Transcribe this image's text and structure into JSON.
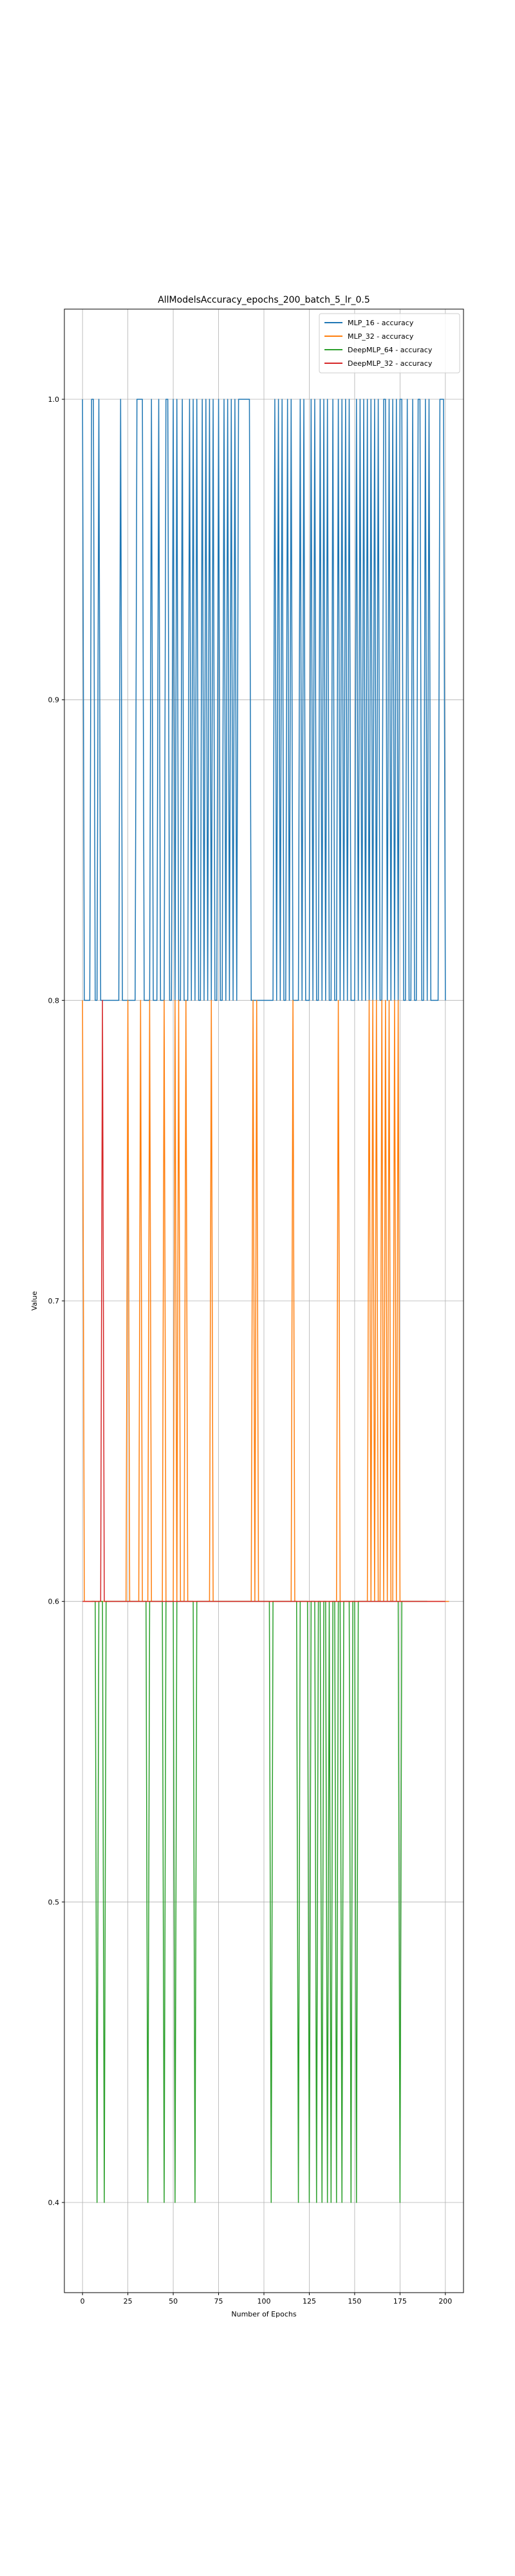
{
  "chart_data": {
    "type": "line",
    "title": "AllModelsAccuracy_epochs_200_batch_5_lr_0.5",
    "xlabel": "Number of Epochs",
    "ylabel": "Value",
    "xlim": [
      -10,
      210
    ],
    "ylim": [
      0.37,
      1.03
    ],
    "x_ticks": [
      0,
      25,
      50,
      75,
      100,
      125,
      150,
      175,
      200
    ],
    "y_ticks": [
      0.4,
      0.5,
      0.6,
      0.7,
      0.8,
      0.9,
      1.0
    ],
    "x_tick_labels": [
      "0",
      "25",
      "50",
      "75",
      "100",
      "125",
      "150",
      "175",
      "200"
    ],
    "y_tick_labels": [
      "0.4",
      "0.5",
      "0.6",
      "0.7",
      "0.8",
      "0.9",
      "1.0"
    ],
    "grid": true,
    "legend_position": "top-right",
    "series": [
      {
        "name": "MLP_16 - accuracy",
        "color": "#1f77b4",
        "x_start": 0,
        "values": [
          1,
          0.8,
          0.8,
          0.8,
          0.8,
          1,
          1,
          0.8,
          0.8,
          1,
          0.8,
          0.8,
          0.8,
          0.8,
          0.8,
          0.8,
          0.8,
          0.8,
          0.8,
          0.8,
          0.8,
          1,
          0.8,
          0.8,
          0.8,
          0.8,
          0.8,
          0.8,
          0.8,
          0.8,
          1,
          1,
          1,
          1,
          0.8,
          0.8,
          0.8,
          0.8,
          1,
          0.8,
          0.8,
          0.8,
          1,
          0.8,
          0.8,
          0.8,
          1,
          1,
          0.8,
          0.8,
          1,
          0.8,
          1,
          0.8,
          0.8,
          1,
          0.8,
          0.8,
          0.8,
          1,
          0.8,
          1,
          0.8,
          1,
          0.8,
          0.8,
          1,
          0.8,
          1,
          0.8,
          1,
          0.8,
          1,
          0.8,
          0.8,
          1,
          0.8,
          0.8,
          1,
          0.8,
          1,
          0.8,
          1,
          0.8,
          1,
          0.8,
          1,
          1,
          1,
          1,
          1,
          1,
          1,
          0.8,
          0.8,
          0.8,
          0.8,
          0.8,
          0.8,
          0.8,
          0.8,
          0.8,
          0.8,
          0.8,
          0.8,
          0.8,
          1,
          0.8,
          1,
          0.8,
          1,
          0.8,
          0.8,
          1,
          0.8,
          1,
          0.8,
          0.8,
          0.8,
          0.8,
          1,
          0.8,
          1,
          0.8,
          0.8,
          0.8,
          1,
          0.8,
          1,
          0.8,
          0.8,
          1,
          0.8,
          1,
          0.8,
          1,
          0.8,
          0.8,
          1,
          0.8,
          0.8,
          1,
          0.8,
          1,
          0.8,
          1,
          0.8,
          1,
          0.8,
          0.8,
          0.8,
          1,
          0.8,
          1,
          0.8,
          1,
          0.8,
          1,
          0.8,
          1,
          0.8,
          1,
          0.8,
          1,
          0.8,
          0.8,
          1,
          1,
          0.8,
          1,
          0.8,
          1,
          0.8,
          1,
          0.8,
          1,
          1,
          0.8,
          0.8,
          1,
          0.8,
          0.8,
          1,
          0.8,
          0.8,
          1,
          1,
          0.8,
          0.8,
          1,
          0.8,
          1,
          0.8,
          0.8,
          0.8,
          0.8,
          0.8,
          1,
          1,
          1,
          0.8
        ]
      },
      {
        "name": "MLP_32 - accuracy",
        "color": "#ff7f0e",
        "x_start": 0,
        "values": [
          0.8,
          0.6,
          0.6,
          0.6,
          0.6,
          0.6,
          0.6,
          0.6,
          0.6,
          0.6,
          0.6,
          0.6,
          0.6,
          0.6,
          0.6,
          0.6,
          0.6,
          0.6,
          0.6,
          0.6,
          0.6,
          0.6,
          0.6,
          0.6,
          0.6,
          0.8,
          0.6,
          0.6,
          0.6,
          0.6,
          0.6,
          0.6,
          0.8,
          0.6,
          0.6,
          0.6,
          0.6,
          0.8,
          0.6,
          0.6,
          0.6,
          0.6,
          0.6,
          0.6,
          0.6,
          0.8,
          0.6,
          0.6,
          0.6,
          0.6,
          0.6,
          0.8,
          0.6,
          0.8,
          0.6,
          0.6,
          0.6,
          0.8,
          0.6,
          0.6,
          0.6,
          0.6,
          0.6,
          0.6,
          0.6,
          0.6,
          0.6,
          0.6,
          0.6,
          0.6,
          0.6,
          0.8,
          0.6,
          0.6,
          0.6,
          0.6,
          0.6,
          0.6,
          0.6,
          0.6,
          0.6,
          0.6,
          0.6,
          0.6,
          0.6,
          0.6,
          0.6,
          0.6,
          0.6,
          0.6,
          0.6,
          0.6,
          0.6,
          0.6,
          0.8,
          0.6,
          0.8,
          0.6,
          0.6,
          0.6,
          0.6,
          0.6,
          0.6,
          0.6,
          0.6,
          0.6,
          0.6,
          0.6,
          0.6,
          0.6,
          0.6,
          0.6,
          0.6,
          0.6,
          0.6,
          0.6,
          0.8,
          0.6,
          0.6,
          0.6,
          0.6,
          0.6,
          0.6,
          0.6,
          0.6,
          0.6,
          0.6,
          0.6,
          0.6,
          0.6,
          0.6,
          0.6,
          0.6,
          0.6,
          0.6,
          0.6,
          0.6,
          0.6,
          0.6,
          0.6,
          0.6,
          0.8,
          0.6,
          0.6,
          0.6,
          0.6,
          0.6,
          0.6,
          0.6,
          0.6,
          0.6,
          0.6,
          0.6,
          0.6,
          0.6,
          0.6,
          0.6,
          0.6,
          0.8,
          0.6,
          0.8,
          0.6,
          0.8,
          0.6,
          0.6,
          0.8,
          0.6,
          0.8,
          0.6,
          0.8,
          0.6,
          0.6,
          0.8,
          0.6,
          0.8,
          0.6,
          0.6,
          0.6,
          0.6,
          0.6,
          0.6,
          0.6,
          0.6,
          0.6,
          0.6,
          0.6,
          0.6,
          0.6,
          0.6,
          0.6,
          0.6,
          0.6,
          0.6,
          0.6,
          0.6,
          0.6,
          0.6,
          0.6,
          0.6,
          0.6,
          0.6,
          0.6,
          0.6
        ]
      },
      {
        "name": "DeepMLP_64 - accuracy",
        "color": "#2ca02c",
        "x_start": 5,
        "values": [
          0.6,
          0.6,
          0.6,
          0.4,
          0.6,
          0.6,
          0.6,
          0.4,
          0.6,
          0.6,
          0.6,
          0.6,
          0.6,
          0.6,
          0.6,
          0.6,
          0.6,
          0.6,
          0.6,
          0.6,
          0.6,
          0.6,
          0.6,
          0.6,
          0.6,
          0.6,
          0.6,
          0.6,
          0.6,
          0.6,
          0.6,
          0.4,
          0.6,
          0.6,
          0.6,
          0.6,
          0.6,
          0.6,
          0.6,
          0.6,
          0.4,
          0.6,
          0.6,
          0.6,
          0.6,
          0.6,
          0.4,
          0.6,
          0.6,
          0.6,
          0.6,
          0.6,
          0.6,
          0.6,
          0.6,
          0.6,
          0.6,
          0.4,
          0.6,
          0.6,
          0.6,
          0.6,
          0.6,
          0.6,
          0.6,
          0.6,
          0.6,
          0.6,
          0.6,
          0.6,
          0.6,
          0.6,
          0.6,
          0.6,
          0.6,
          0.6,
          0.6,
          0.6,
          0.6,
          0.6,
          0.6,
          0.6,
          0.6,
          0.6,
          0.6,
          0.6,
          0.6,
          0.6,
          0.6,
          0.6,
          0.6,
          0.6,
          0.6,
          0.6,
          0.6,
          0.6,
          0.6,
          0.6,
          0.6,
          0.4,
          0.6,
          0.6,
          0.6,
          0.6,
          0.6,
          0.6,
          0.6,
          0.6,
          0.6,
          0.6,
          0.6,
          0.6,
          0.6,
          0.6,
          0.4,
          0.6,
          0.6,
          0.6,
          0.6,
          0.6,
          0.4,
          0.6,
          0.6,
          0.6,
          0.4,
          0.6,
          0.6,
          0.4,
          0.6,
          0.6,
          0.4,
          0.6,
          0.4,
          0.6,
          0.6,
          0.4,
          0.6,
          0.6,
          0.4,
          0.6,
          0.6,
          0.6,
          0.6,
          0.4,
          0.6,
          0.6,
          0.4,
          0.6,
          0.6,
          0.6,
          0.6,
          0.6,
          0.6,
          0.6,
          0.6,
          0.6,
          0.6,
          0.6,
          0.6,
          0.6,
          0.6,
          0.6,
          0.6,
          0.6,
          0.6,
          0.6,
          0.6,
          0.6,
          0.6,
          0.6,
          0.4,
          0.6,
          0.6,
          0.6,
          0.6,
          0.6,
          0.6,
          0.6,
          0.6,
          0.6,
          0.6,
          0.6,
          0.6,
          0.6,
          0.6,
          0.6
        ]
      },
      {
        "name": "DeepMLP_32 - accuracy",
        "color": "#d62728",
        "x_start": 0,
        "values": [
          0.6,
          0.6,
          0.6,
          0.6,
          0.6,
          0.6,
          0.6,
          0.6,
          0.6,
          0.6,
          0.6,
          0.8,
          0.6,
          0.6,
          0.6,
          0.6,
          0.6,
          0.6,
          0.6,
          0.6,
          0.6,
          0.6,
          0.6,
          0.6,
          0.6,
          0.6,
          0.6,
          0.6,
          0.6,
          0.6,
          0.6,
          0.6,
          0.6,
          0.6,
          0.6,
          0.6,
          0.6,
          0.6,
          0.6,
          0.6,
          0.6,
          0.6,
          0.6,
          0.6,
          0.6,
          0.6,
          0.6,
          0.6,
          0.6,
          0.6,
          0.6,
          0.6,
          0.6,
          0.6,
          0.6,
          0.6,
          0.6,
          0.6,
          0.6,
          0.6,
          0.6,
          0.6,
          0.6,
          0.6,
          0.6,
          0.6,
          0.6,
          0.6,
          0.6,
          0.6,
          0.6,
          0.6,
          0.6,
          0.6,
          0.6,
          0.6,
          0.6,
          0.6,
          0.6,
          0.6,
          0.6,
          0.6,
          0.6,
          0.6,
          0.6,
          0.6,
          0.6,
          0.6,
          0.6,
          0.6,
          0.6,
          0.6,
          0.6,
          0.6,
          0.6,
          0.6,
          0.6,
          0.6,
          0.6,
          0.6,
          0.6,
          0.6,
          0.6,
          0.6,
          0.6,
          0.6,
          0.6,
          0.6,
          0.6,
          0.6,
          0.6,
          0.6,
          0.6,
          0.6,
          0.6,
          0.6,
          0.6,
          0.6,
          0.6,
          0.6,
          0.6,
          0.6,
          0.6,
          0.6,
          0.6,
          0.6,
          0.6,
          0.6,
          0.6,
          0.6,
          0.6,
          0.6,
          0.6,
          0.6,
          0.6,
          0.6,
          0.6,
          0.6,
          0.6,
          0.6,
          0.6,
          0.6,
          0.6,
          0.6,
          0.6,
          0.6,
          0.6,
          0.6,
          0.6,
          0.6,
          0.6,
          0.6,
          0.6,
          0.6,
          0.6,
          0.6,
          0.6,
          0.6,
          0.6,
          0.6,
          0.6,
          0.6,
          0.6,
          0.6,
          0.6,
          0.6,
          0.6,
          0.6,
          0.6,
          0.6,
          0.6,
          0.6,
          0.6,
          0.6,
          0.6,
          0.6,
          0.6,
          0.6,
          0.6,
          0.6,
          0.6,
          0.6,
          0.6,
          0.6,
          0.6,
          0.6,
          0.6,
          0.6,
          0.6,
          0.6,
          0.6,
          0.6,
          0.6,
          0.6,
          0.6,
          0.6,
          0.6,
          0.6,
          0.6,
          0.6,
          0.6
        ]
      }
    ]
  }
}
